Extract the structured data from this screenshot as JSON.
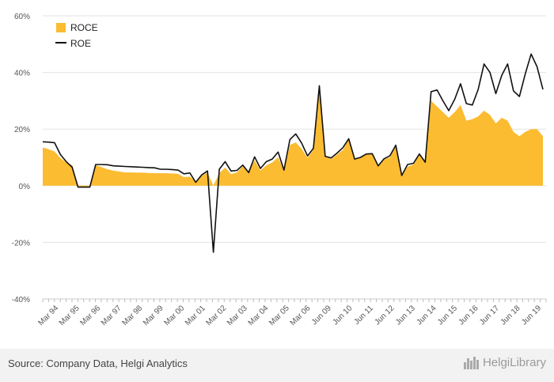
{
  "chart_data": {
    "type": "area",
    "x_tick_labels": [
      "Mar 94",
      "Mar 95",
      "Mar 96",
      "Mar 97",
      "Mar 98",
      "Mar 99",
      "Mar 00",
      "Mar 01",
      "Mar 02",
      "Mar 03",
      "Mar 04",
      "Mar 05",
      "Mar 06",
      "Jun 09",
      "Jun 10",
      "Jun 11",
      "Jun 12",
      "Jun 13",
      "Jun 14",
      "Jun 15",
      "Jun 16",
      "Jun 17",
      "Jun 18",
      "Jun 19"
    ],
    "y_tick_labels": [
      "60%",
      "40%",
      "20%",
      "0%",
      "-20%",
      "-40%"
    ],
    "ylim": [
      -40,
      60
    ],
    "grid": true,
    "legend_position": "top-left",
    "series": [
      {
        "name": "ROCE",
        "type": "area",
        "color": "#fbbc31",
        "values": [
          13.5,
          12.9,
          12.1,
          9.8,
          8.2,
          7.3,
          -0.4,
          -0.4,
          -0.4,
          7.2,
          6.6,
          5.8,
          5.3,
          5.0,
          4.7,
          4.7,
          4.6,
          4.6,
          4.5,
          4.4,
          4.4,
          4.4,
          4.3,
          4.2,
          3.0,
          3.2,
          1.5,
          3.5,
          4.6,
          0.0,
          4.4,
          6.4,
          4.1,
          4.7,
          6.9,
          4.9,
          9.0,
          5.4,
          7.2,
          8.2,
          10.0,
          5.4,
          14.4,
          15.3,
          13.0,
          9.8,
          12.8,
          34.6,
          10.4,
          9.4,
          11.0,
          12.6,
          16.4,
          9.5,
          9.8,
          11.2,
          11.3,
          7.0,
          9.3,
          10.0,
          14.2,
          3.8,
          6.7,
          7.5,
          10.9,
          8.2,
          30.0,
          28.0,
          26.0,
          24.0,
          26.0,
          28.5,
          23.0,
          23.5,
          24.5,
          26.5,
          25.0,
          22.0,
          24.0,
          23.0,
          19.0,
          17.5,
          19.0,
          20.0,
          20.0,
          17.5
        ]
      },
      {
        "name": "ROE",
        "type": "line",
        "color": "#111111",
        "values": [
          15.5,
          15.4,
          15.2,
          11.0,
          8.5,
          6.5,
          -0.5,
          -0.5,
          -0.5,
          7.5,
          7.5,
          7.4,
          7.0,
          6.9,
          6.8,
          6.7,
          6.6,
          6.5,
          6.4,
          6.3,
          5.8,
          5.8,
          5.7,
          5.5,
          4.2,
          4.5,
          1.2,
          3.8,
          5.2,
          -23.5,
          5.8,
          8.5,
          5.2,
          5.4,
          7.3,
          4.6,
          10.2,
          6.1,
          8.5,
          9.4,
          11.9,
          5.5,
          16.3,
          18.3,
          15.0,
          10.5,
          13.2,
          35.3,
          10.4,
          9.8,
          11.5,
          13.4,
          16.6,
          9.4,
          10.0,
          11.2,
          11.3,
          7.0,
          9.5,
          10.6,
          14.3,
          3.6,
          7.5,
          7.9,
          11.2,
          8.3,
          33.2,
          33.8,
          30.0,
          26.5,
          30.5,
          36.0,
          29.0,
          28.5,
          34.0,
          43.0,
          40.0,
          32.5,
          39.0,
          43.0,
          33.5,
          31.5,
          39.5,
          46.5,
          42.0,
          34.0
        ]
      }
    ]
  },
  "footer": {
    "source": "Source: Company Data, Helgi Analytics",
    "brand_name": "HelgiLibrary"
  }
}
